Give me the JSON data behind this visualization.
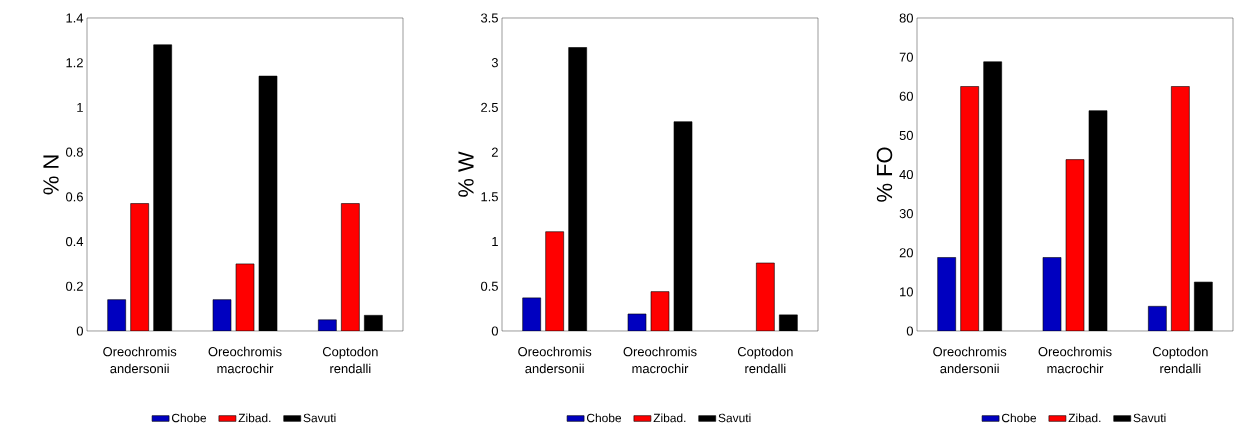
{
  "chart_data": [
    {
      "type": "bar",
      "ylabel": "% N",
      "categories": [
        "Oreochromis andersonii",
        "Oreochromis macrochir",
        "Coptodon rendalli"
      ],
      "series": [
        {
          "name": "Chobe",
          "color": "#0000c0",
          "values": [
            0.14,
            0.14,
            0.05
          ]
        },
        {
          "name": "Zibad.",
          "color": "#ff0000",
          "values": [
            0.57,
            0.3,
            0.57
          ]
        },
        {
          "name": "Savuti",
          "color": "#000000",
          "values": [
            1.28,
            1.14,
            0.07
          ]
        }
      ],
      "ylim": [
        0,
        1.4
      ],
      "yticks": [
        0,
        0.2,
        0.4,
        0.6,
        0.8,
        1,
        1.2,
        1.4
      ],
      "grid": false,
      "legend": "bottom"
    },
    {
      "type": "bar",
      "ylabel": "% W",
      "categories": [
        "Oreochromis andersonii",
        "Oreochromis macrochir",
        "Coptodon rendalli"
      ],
      "series": [
        {
          "name": "Chobe",
          "color": "#0000c0",
          "values": [
            0.37,
            0.19,
            null
          ]
        },
        {
          "name": "Zibad.",
          "color": "#ff0000",
          "values": [
            1.11,
            0.44,
            0.76
          ]
        },
        {
          "name": "Savuti",
          "color": "#000000",
          "values": [
            3.17,
            2.34,
            0.18
          ]
        }
      ],
      "ylim": [
        0,
        3.5
      ],
      "yticks": [
        0,
        0.5,
        1,
        1.5,
        2,
        2.5,
        3,
        3.5
      ],
      "grid": false,
      "legend": "bottom"
    },
    {
      "type": "bar",
      "ylabel": "% FO",
      "categories": [
        "Oreochromis andersonii",
        "Oreochromis macrochir",
        "Coptodon rendalli"
      ],
      "series": [
        {
          "name": "Chobe",
          "color": "#0000c0",
          "values": [
            18.8,
            18.8,
            6.3
          ]
        },
        {
          "name": "Zibad.",
          "color": "#ff0000",
          "values": [
            62.5,
            43.8,
            62.5
          ]
        },
        {
          "name": "Savuti",
          "color": "#000000",
          "values": [
            68.8,
            56.3,
            12.5
          ]
        }
      ],
      "ylim": [
        0,
        80
      ],
      "yticks": [
        0,
        10,
        20,
        30,
        40,
        50,
        60,
        70,
        80
      ],
      "grid": false,
      "legend": "bottom"
    }
  ]
}
